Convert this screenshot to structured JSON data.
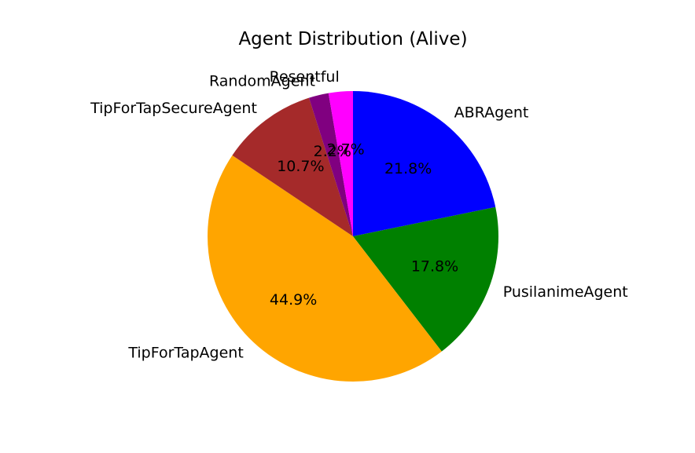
{
  "chart_data": {
    "type": "pie",
    "title": "Agent Distribution (Alive)",
    "slices": [
      {
        "label": "ABRAgent",
        "value": 21.8,
        "pct_text": "21.8%",
        "color": "#0000ff"
      },
      {
        "label": "PusilanimeAgent",
        "value": 17.8,
        "pct_text": "17.8%",
        "color": "#008000"
      },
      {
        "label": "TipForTapAgent",
        "value": 44.9,
        "pct_text": "44.9%",
        "color": "#ffa500"
      },
      {
        "label": "TipForTapSecureAgent",
        "value": 10.7,
        "pct_text": "10.7%",
        "color": "#a52a2a"
      },
      {
        "label": "RandomAgent",
        "value": 2.2,
        "pct_text": "2.2%",
        "color": "#800080"
      },
      {
        "label": "Resentful",
        "value": 2.7,
        "pct_text": "2.7%",
        "color": "#ff00ff"
      }
    ],
    "start_angle": "top",
    "direction": "clockwise",
    "legend": "none",
    "grid": false
  }
}
